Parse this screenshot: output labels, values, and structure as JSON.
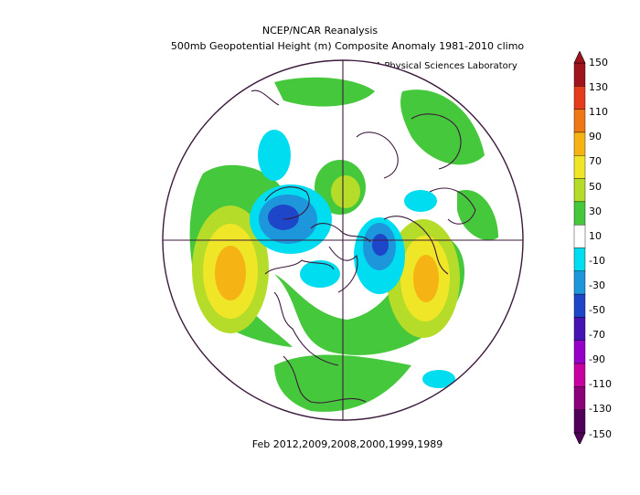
{
  "header": {
    "title": "NCEP/NCAR Reanalysis",
    "subtitle": "500mb Geopotential Height (m) Composite Anomaly 1981-2010 climo",
    "credit": "NOAA Physical Sciences Laboratory"
  },
  "footer": {
    "period": "Feb 2012,2009,2008,2000,1999,1989"
  },
  "map": {
    "projection": "north-polar-stereographic",
    "variable": "500mb geopotential height anomaly",
    "units": "m"
  },
  "colorbar": {
    "labels": [
      "150",
      "130",
      "110",
      "90",
      "70",
      "50",
      "30",
      "10",
      "-10",
      "-30",
      "-50",
      "-70",
      "-90",
      "-110",
      "-130",
      "-150"
    ],
    "colors": [
      "#a0141e",
      "#e63c1e",
      "#f07814",
      "#f5b414",
      "#f0e628",
      "#b4dc28",
      "#46c83c",
      "#ffffff",
      "#00dcf0",
      "#1e96dc",
      "#1e46c8",
      "#4614b4",
      "#9600c8",
      "#c800a0",
      "#8c0078",
      "#50005a"
    ]
  }
}
